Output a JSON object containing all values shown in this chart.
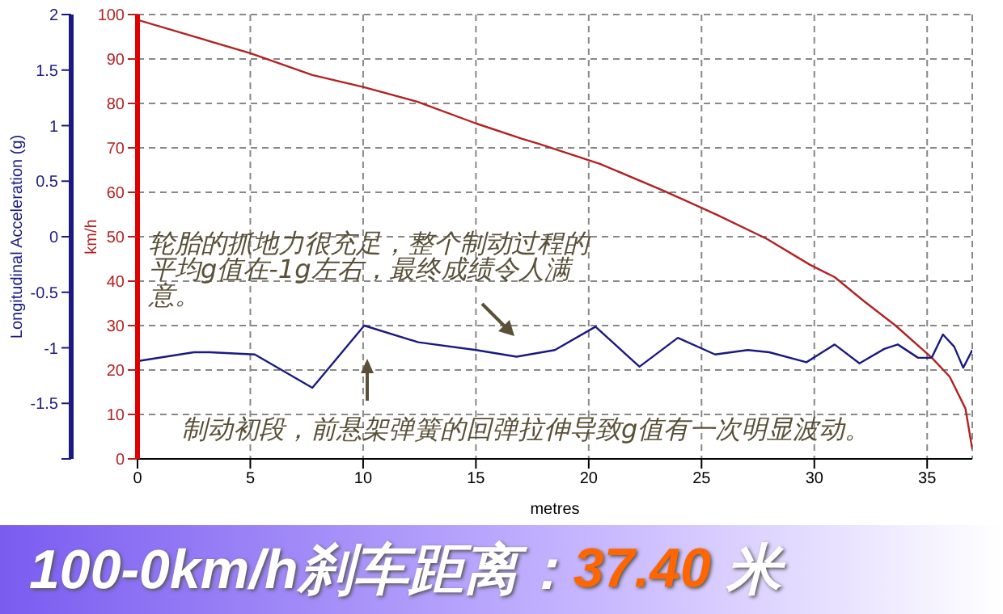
{
  "chart_data": {
    "type": "line",
    "title": "100-0km/h刹车距离：37.40 米",
    "xlabel": "metres",
    "ylabel": "km/h",
    "y2label": "Longitudinal Acceleration (g)",
    "xlim": [
      0,
      37
    ],
    "xticks": [
      0,
      5,
      10,
      15,
      20,
      25,
      30,
      35
    ],
    "ylim": [
      0,
      100
    ],
    "yticks": [
      0,
      10,
      20,
      30,
      40,
      50,
      60,
      70,
      80,
      90,
      100
    ],
    "y2lim": [
      -2,
      2
    ],
    "y2ticks": [
      {
        "value": -2,
        "label": null
      },
      -1.5,
      -1,
      -0.5,
      0,
      0.5,
      1,
      1.5,
      2
    ],
    "grid": true,
    "legend": false,
    "marker": "none",
    "line_style": "solid",
    "series": [
      {
        "color": "#b22222",
        "x": [
          0,
          5,
          7.75,
          10,
          12.4,
          15,
          17,
          17.8,
          20.5,
          23.3,
          25.7,
          27.9,
          29.8,
          30.9,
          32.2,
          33.6,
          35.2,
          36,
          36.7,
          37
        ],
        "values": [
          98.8,
          91.3,
          86.4,
          83.7,
          80.4,
          75.5,
          72.1,
          70.9,
          66.4,
          60.4,
          54.9,
          49.5,
          43.7,
          40.9,
          35.5,
          30,
          22.8,
          18.5,
          11.3,
          2.2
        ]
      },
      {
        "color": "#1a1a80",
        "axis": "y2",
        "x": [
          0,
          2.5,
          3.2,
          5.2,
          7.75,
          10.05,
          12.45,
          15,
          16.8,
          18.5,
          20.3,
          22.25,
          23.95,
          25.6,
          27.05,
          28,
          29.65,
          30.9,
          32,
          33.1,
          33.7,
          34.6,
          35.2,
          35.7,
          36.2,
          36.6,
          37
        ],
        "values": [
          -1.12,
          -1.04,
          -1.04,
          -1.06,
          -1.36,
          -0.8,
          -0.95,
          -1.02,
          -1.08,
          -1.02,
          -0.81,
          -1.17,
          -0.91,
          -1.06,
          -1.02,
          -1.04,
          -1.13,
          -0.97,
          -1.14,
          -1.01,
          -0.97,
          -1.09,
          -1.09,
          -0.88,
          -0.99,
          -1.18,
          -1.02
        ]
      }
    ],
    "annotations": [
      "轮胎的抓地力很充足，整个制动过程的平均g值在-1g左右，最终成绩令人满意。",
      "制动初段，前悬架弹簧的回弹拉伸导致g值有一次明显波动。"
    ]
  }
}
